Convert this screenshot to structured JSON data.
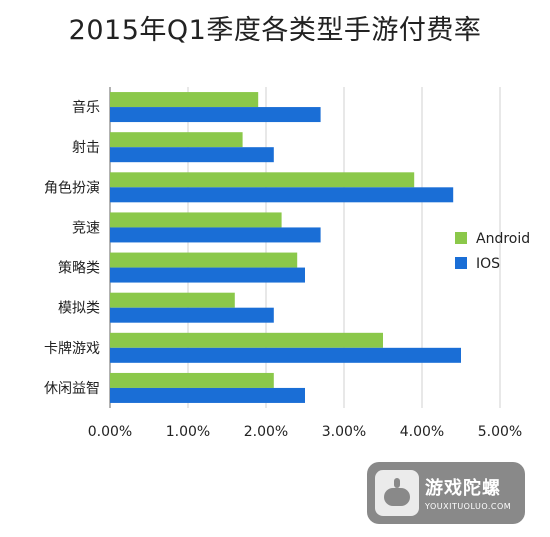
{
  "chart_data": {
    "type": "bar",
    "orientation": "horizontal",
    "title": "2015年Q1季度各类型手游付费率",
    "categories": [
      "音乐",
      "射击",
      "角色扮演",
      "竞速",
      "策略类",
      "模拟类",
      "卡牌游戏",
      "休闲益智"
    ],
    "series": [
      {
        "name": "Android",
        "color": "#8bc84a",
        "values": [
          1.9,
          1.7,
          3.9,
          2.2,
          2.4,
          1.6,
          3.5,
          2.1
        ]
      },
      {
        "name": "IOS",
        "color": "#1a6ed6",
        "values": [
          2.7,
          2.1,
          4.4,
          2.7,
          2.5,
          2.1,
          4.5,
          2.5
        ]
      }
    ],
    "xlim": [
      0,
      5
    ],
    "xticks": [
      0,
      1,
      2,
      3,
      4,
      5
    ],
    "xtick_labels": [
      "0.00%",
      "1.00%",
      "2.00%",
      "3.00%",
      "4.00%",
      "5.00%"
    ],
    "grid": "vertical",
    "legend": "right"
  },
  "watermark": {
    "name": "游戏陀螺",
    "url": "YOUXITUOLUO.COM"
  }
}
